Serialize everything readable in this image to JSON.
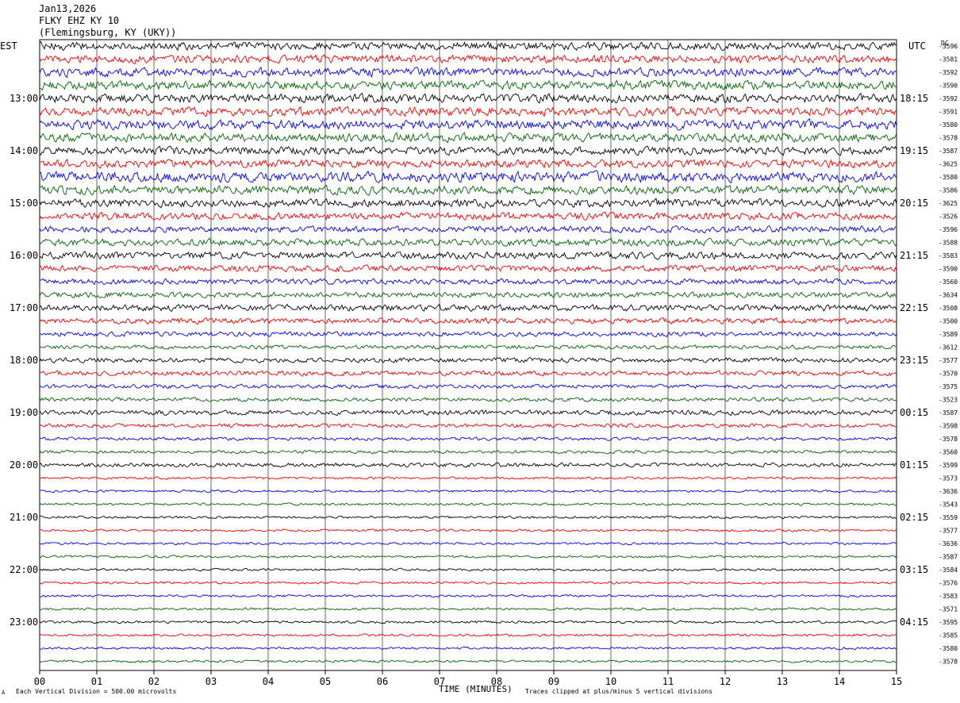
{
  "header": {
    "date": "Jan13,2026",
    "station": "FLKY EHZ KY 10",
    "location": "(Flemingsburg, KY (UKY))"
  },
  "left_tz": "EST",
  "right_tz": "UTC",
  "dc_label": "DC",
  "footer": {
    "scale": "Each Vertical Division =  500.00 microvolts",
    "xlabel": "TIME (MINUTES)",
    "clip": "Traces clipped at plus/minus 5 vertical divisions",
    "mark": "A"
  },
  "colors": {
    "black": "#000000",
    "red": "#ff0000",
    "blue": "#0000ff",
    "green": "#006400",
    "grid": "#000000"
  },
  "chart_data": {
    "type": "line",
    "title": "FLKY EHZ KY 10",
    "xlabel": "TIME (MINUTES)",
    "ylabel": "",
    "xlim": [
      0,
      15
    ],
    "x_ticks": [
      "00",
      "01",
      "02",
      "03",
      "04",
      "05",
      "06",
      "07",
      "08",
      "09",
      "10",
      "11",
      "12",
      "13",
      "14",
      "15"
    ],
    "trace_colors": [
      "#000000",
      "#ff0000",
      "#0000ff",
      "#006400"
    ],
    "rows": 48,
    "left_hour_labels": [
      "13:00",
      "14:00",
      "15:00",
      "16:00",
      "17:00",
      "18:00",
      "19:00",
      "20:00",
      "21:00",
      "22:00",
      "23:00"
    ],
    "right_hour_labels": [
      "18:15",
      "19:15",
      "20:15",
      "21:15",
      "22:15",
      "23:15",
      "00:15",
      "01:15",
      "02:15",
      "03:15",
      "04:15"
    ],
    "dc_offsets": [
      "-3596",
      "-3581",
      "-3592",
      "-3590",
      "-3592",
      "-3591",
      "-3580",
      "-3578",
      "-3587",
      "-3625",
      "-3580",
      "-3586",
      "-3625",
      "-3526",
      "-3596",
      "-3588",
      "-3583",
      "-3590",
      "-3560",
      "-3634",
      "-3508",
      "-3500",
      "-3589",
      "-3612",
      "-3577",
      "-3570",
      "-3575",
      "-3523",
      "-3587",
      "-3598",
      "-3578",
      "-3560",
      "-3599",
      "-3573",
      "-3636",
      "-3543",
      "-3559",
      "-3577",
      "-3636",
      "-3587",
      "-3584",
      "-3576",
      "-3583",
      "-3571",
      "-3595",
      "-3585",
      "-3580",
      "-3578"
    ],
    "row_amplitude": [
      1.0,
      1.0,
      1.1,
      1.1,
      1.1,
      1.1,
      1.2,
      1.1,
      1.0,
      1.0,
      1.3,
      1.1,
      1.0,
      0.9,
      0.8,
      0.9,
      0.9,
      0.8,
      0.7,
      0.7,
      0.8,
      0.7,
      0.6,
      0.5,
      0.6,
      0.6,
      0.5,
      0.5,
      0.6,
      0.5,
      0.4,
      0.4,
      0.5,
      0.3,
      0.3,
      0.3,
      0.3,
      0.3,
      0.3,
      0.3,
      0.3,
      0.3,
      0.3,
      0.3,
      0.3,
      0.3,
      0.3,
      0.3
    ]
  }
}
